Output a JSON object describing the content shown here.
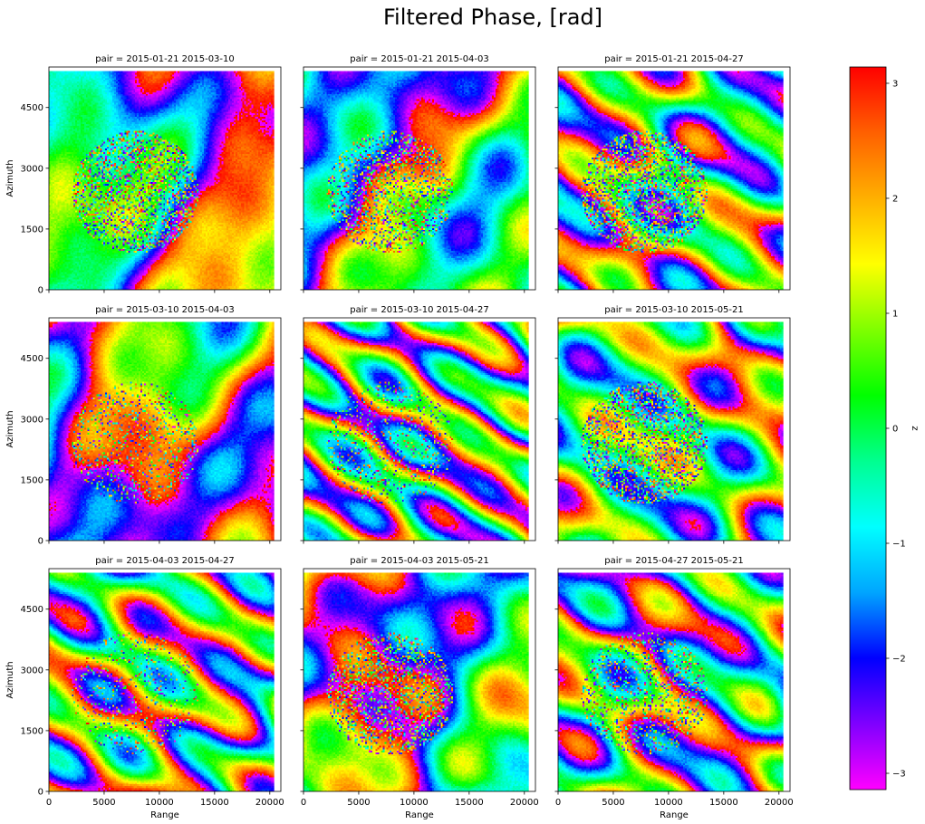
{
  "figure": {
    "title": "Filtered Phase, [rad]"
  },
  "chart_data": {
    "type": "heatmap",
    "title": "Filtered Phase, [rad]",
    "xlabel": "Range",
    "ylabel": "Azimuth",
    "xlim": [
      0,
      21000
    ],
    "ylim": [
      0,
      5500
    ],
    "data_extent_x": [
      0,
      20400
    ],
    "data_extent_y": [
      0,
      5400
    ],
    "x_ticks": [
      0,
      5000,
      10000,
      15000,
      20000
    ],
    "y_ticks": [
      0,
      1500,
      3000,
      4500
    ],
    "colormap": "gist_rainbow_r",
    "colorbar": {
      "label": "z",
      "range": [
        -3.14159,
        3.14159
      ],
      "ticks": [
        -3,
        -2,
        -1,
        0,
        1,
        2,
        3
      ],
      "tick_labels": [
        "−3",
        "−2",
        "−1",
        "0",
        "1",
        "2",
        "3"
      ],
      "colors": [
        "#ff00ff",
        "#7f00ff",
        "#0000ff",
        "#00a5ff",
        "#00ffff",
        "#00ff90",
        "#00ff00",
        "#7fff00",
        "#ffff00",
        "#ffb000",
        "#ff6000",
        "#ff0000"
      ]
    },
    "panels": [
      {
        "title": "pair = 2015-01-21 2015-03-10",
        "show_xlabel": false,
        "show_ylabel": true
      },
      {
        "title": "pair = 2015-01-21 2015-04-03",
        "show_xlabel": false,
        "show_ylabel": false
      },
      {
        "title": "pair = 2015-01-21 2015-04-27",
        "show_xlabel": false,
        "show_ylabel": false
      },
      {
        "title": "pair = 2015-03-10 2015-04-03",
        "show_xlabel": false,
        "show_ylabel": true
      },
      {
        "title": "pair = 2015-03-10 2015-04-27",
        "show_xlabel": false,
        "show_ylabel": false
      },
      {
        "title": "pair = 2015-03-10 2015-05-21",
        "show_xlabel": false,
        "show_ylabel": false
      },
      {
        "title": "pair = 2015-04-03 2015-04-27",
        "show_xlabel": true,
        "show_ylabel": true
      },
      {
        "title": "pair = 2015-04-03 2015-05-21",
        "show_xlabel": true,
        "show_ylabel": false
      },
      {
        "title": "pair = 2015-04-27 2015-05-21",
        "show_xlabel": true,
        "show_ylabel": false
      }
    ]
  }
}
